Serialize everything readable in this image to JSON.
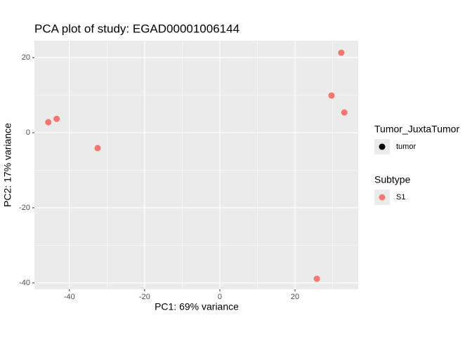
{
  "chart_data": {
    "type": "scatter",
    "title": "PCA plot of study: EGAD00001006144",
    "x_label": "PC1: 69% variance",
    "y_label": "PC2: 17% variance",
    "series": [
      {
        "name": "S1",
        "color": "#F8766D",
        "x": [
          -45.6,
          -43.4,
          -32.5,
          32.3,
          29.7,
          33.1,
          25.8
        ],
        "values": [
          2.8,
          3.7,
          -4.1,
          21.3,
          9.9,
          5.4,
          -38.9
        ]
      }
    ],
    "xlim": [
      -49.3,
      36.8
    ],
    "ylim": [
      -41.7,
      24.5
    ],
    "xticks": [
      -40,
      -20,
      0,
      20
    ],
    "yticks": [
      -40,
      -20,
      0,
      20
    ],
    "grid": true,
    "legends": [
      {
        "title": "Tumor_JuxtaTumor",
        "entries": [
          {
            "label": "tumor",
            "color": "#000000"
          }
        ]
      },
      {
        "title": "Subtype",
        "entries": [
          {
            "label": "S1",
            "color": "#F8766D"
          }
        ]
      }
    ],
    "legend_position": "right"
  }
}
